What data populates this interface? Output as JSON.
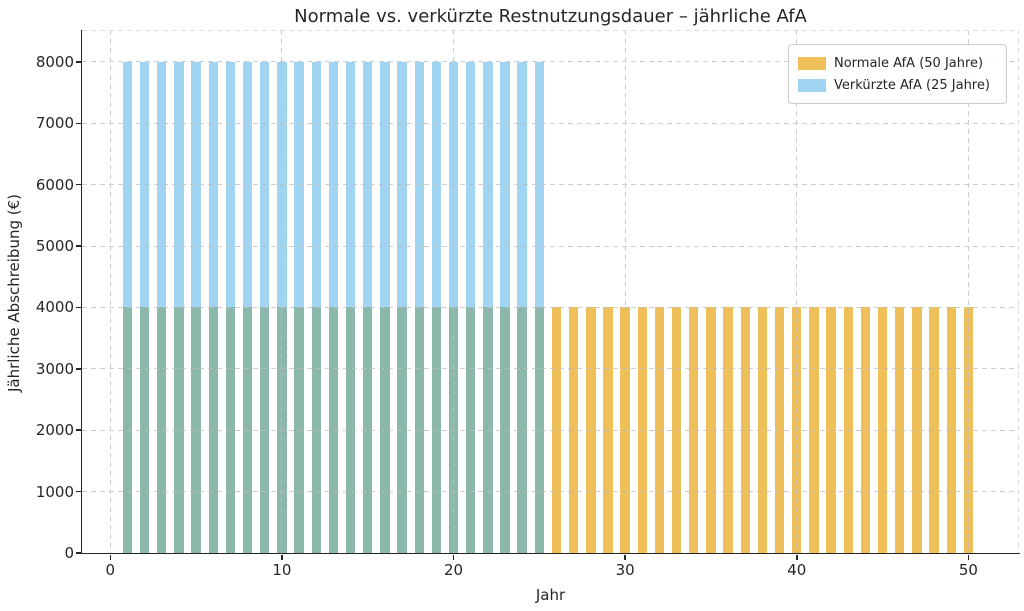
{
  "chart_data": {
    "type": "bar",
    "title": "Normale vs. verkürzte Restnutzungsdauer – jährliche AfA",
    "xlabel": "Jahr",
    "ylabel": "Jährliche Abschreibung (€)",
    "xlim": [
      -1.65,
      52.95
    ],
    "ylim": [
      0,
      8520
    ],
    "xticks": [
      0,
      10,
      20,
      30,
      40,
      50
    ],
    "yticks": [
      0,
      1000,
      2000,
      3000,
      4000,
      5000,
      6000,
      7000,
      8000
    ],
    "grid": true,
    "grid_style": "dashed",
    "legend_position": "top-right",
    "x": [
      1,
      2,
      3,
      4,
      5,
      6,
      7,
      8,
      9,
      10,
      11,
      12,
      13,
      14,
      15,
      16,
      17,
      18,
      19,
      20,
      21,
      22,
      23,
      24,
      25,
      26,
      27,
      28,
      29,
      30,
      31,
      32,
      33,
      34,
      35,
      36,
      37,
      38,
      39,
      40,
      41,
      42,
      43,
      44,
      45,
      46,
      47,
      48,
      49,
      50
    ],
    "series": [
      {
        "name": "Normale AfA (50 Jahre)",
        "color": "#efc05a",
        "values": [
          4000,
          4000,
          4000,
          4000,
          4000,
          4000,
          4000,
          4000,
          4000,
          4000,
          4000,
          4000,
          4000,
          4000,
          4000,
          4000,
          4000,
          4000,
          4000,
          4000,
          4000,
          4000,
          4000,
          4000,
          4000,
          4000,
          4000,
          4000,
          4000,
          4000,
          4000,
          4000,
          4000,
          4000,
          4000,
          4000,
          4000,
          4000,
          4000,
          4000,
          4000,
          4000,
          4000,
          4000,
          4000,
          4000,
          4000,
          4000,
          4000,
          4000
        ]
      },
      {
        "name": "Verkürzte AfA (25 Jahre)",
        "color": "#a0d4f0",
        "values": [
          8000,
          8000,
          8000,
          8000,
          8000,
          8000,
          8000,
          8000,
          8000,
          8000,
          8000,
          8000,
          8000,
          8000,
          8000,
          8000,
          8000,
          8000,
          8000,
          8000,
          8000,
          8000,
          8000,
          8000,
          8000,
          0,
          0,
          0,
          0,
          0,
          0,
          0,
          0,
          0,
          0,
          0,
          0,
          0,
          0,
          0,
          0,
          0,
          0,
          0,
          0,
          0,
          0,
          0,
          0,
          0
        ]
      }
    ],
    "overlap_color": "#8cb7ab",
    "axis_color": "#262626",
    "grid_color": "#c8c8c8",
    "background_color": "#ffffff"
  }
}
